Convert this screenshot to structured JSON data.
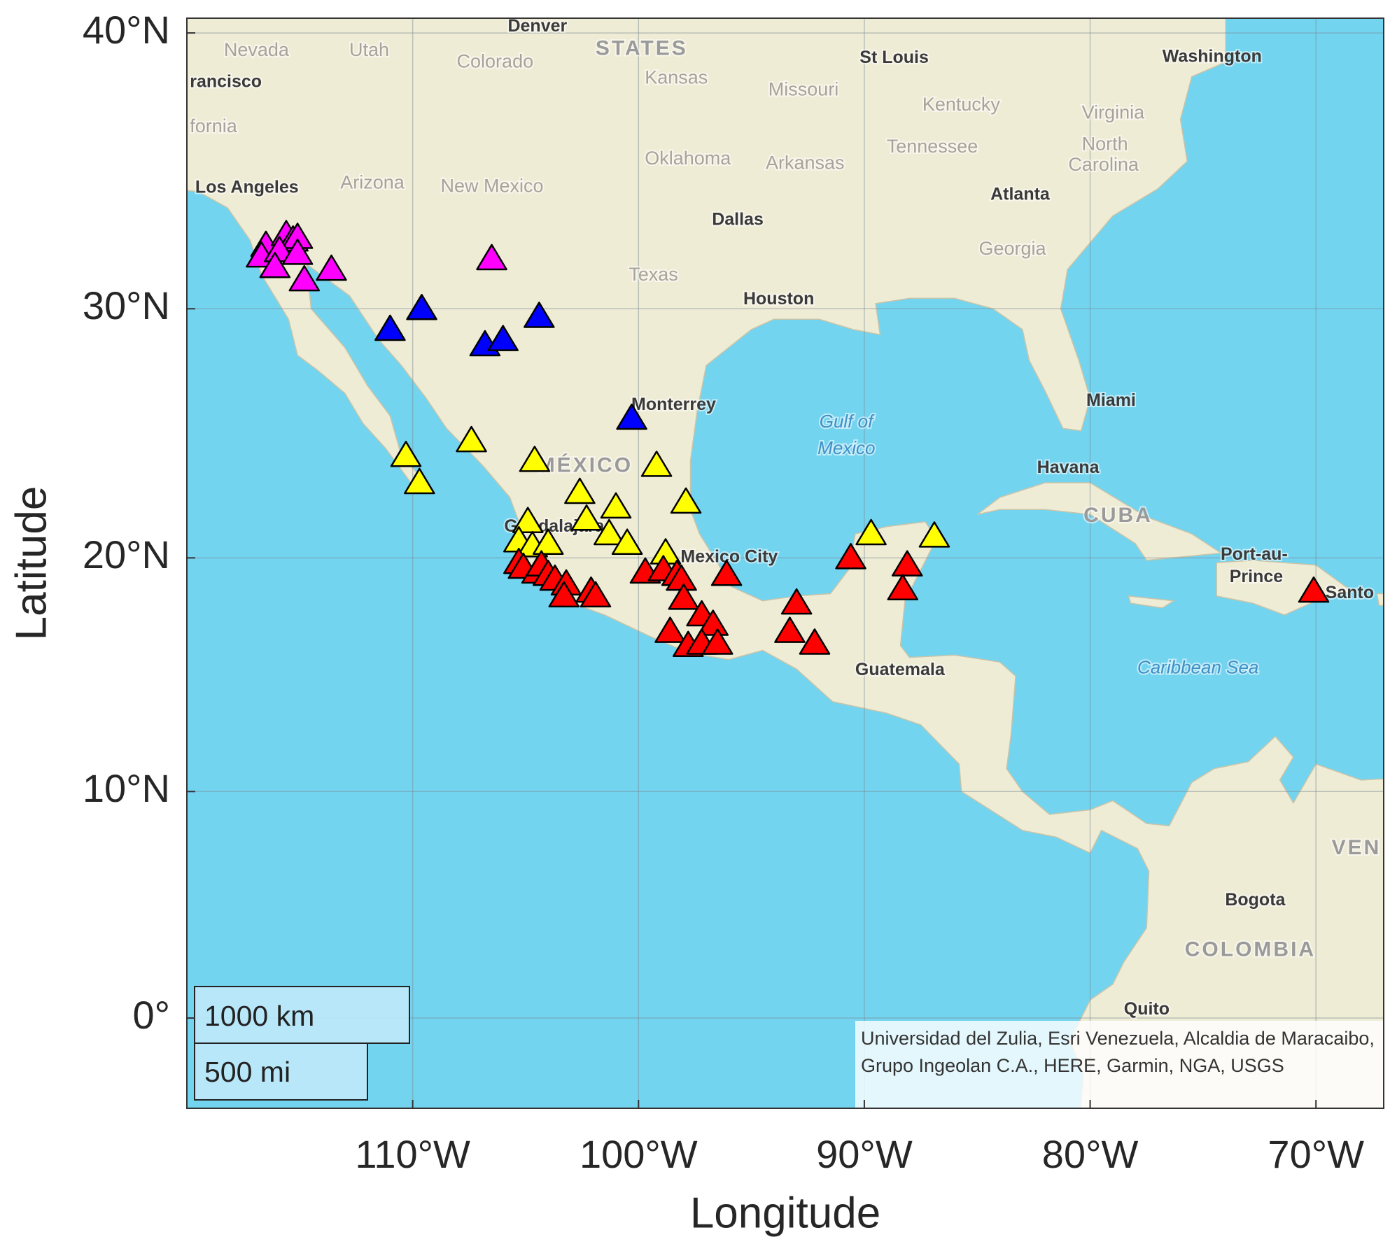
{
  "chart_data": {
    "type": "scatter",
    "projection": "mercator",
    "x_label": "Longitude",
    "y_label": "Latitude",
    "xlim": [
      -120,
      -67
    ],
    "ylim": [
      -4,
      40.5
    ],
    "xticks": [
      {
        "value": -110,
        "label": "110°W"
      },
      {
        "value": -100,
        "label": "100°W"
      },
      {
        "value": -90,
        "label": "90°W"
      },
      {
        "value": -80,
        "label": "80°W"
      },
      {
        "value": -70,
        "label": "70°W"
      }
    ],
    "yticks": [
      {
        "value": 0,
        "label": "0°"
      },
      {
        "value": 10,
        "label": "10°N"
      },
      {
        "value": 20,
        "label": "20°N"
      },
      {
        "value": 30,
        "label": "30°N"
      },
      {
        "value": 40,
        "label": "40°N"
      }
    ],
    "grid": true,
    "marker": "triangle",
    "series": [
      {
        "color": "#ff00ff",
        "x": [
          -116.5,
          -116.7,
          -115.6,
          -115.3,
          -115.1,
          -115.9,
          -115.1,
          -116.1,
          -114.8,
          -113.6,
          -106.5
        ],
        "y": [
          32.4,
          32.0,
          32.8,
          32.6,
          32.7,
          32.2,
          32.1,
          31.6,
          31.1,
          31.5,
          31.9
        ]
      },
      {
        "color": "#0000ff",
        "x": [
          -111.0,
          -109.6,
          -106.8,
          -106.0,
          -104.4,
          -100.3
        ],
        "y": [
          29.2,
          30.0,
          28.6,
          28.8,
          29.7,
          25.7
        ]
      },
      {
        "color": "#ffff00",
        "x": [
          -110.3,
          -109.7,
          -107.4,
          -104.6,
          -99.2,
          -102.6,
          -101.0,
          -97.9,
          -102.3,
          -101.3,
          -100.5,
          -104.9,
          -105.3,
          -104.7,
          -104.0,
          -98.8,
          -89.7,
          -86.9
        ],
        "y": [
          24.2,
          23.1,
          24.8,
          24.0,
          23.8,
          22.7,
          22.1,
          22.3,
          21.6,
          21.0,
          20.6,
          21.5,
          20.7,
          20.5,
          20.6,
          20.2,
          21.0,
          20.9
        ]
      },
      {
        "color": "#ff0000",
        "x": [
          -105.3,
          -105.1,
          -104.5,
          -104.3,
          -104.0,
          -103.7,
          -103.2,
          -103.3,
          -102.1,
          -101.9,
          -99.7,
          -98.9,
          -98.3,
          -98.1,
          -96.1,
          -98.0,
          -98.6,
          -97.2,
          -96.7,
          -97.8,
          -97.2,
          -96.5,
          -93.0,
          -93.3,
          -92.2,
          -90.6,
          -88.1,
          -88.3,
          -70.1
        ],
        "y": [
          19.8,
          19.6,
          19.4,
          19.7,
          19.3,
          19.1,
          18.9,
          18.4,
          18.6,
          18.4,
          19.4,
          19.5,
          19.3,
          19.1,
          19.3,
          18.3,
          16.9,
          17.6,
          17.2,
          16.3,
          16.4,
          16.4,
          18.1,
          16.9,
          16.4,
          20.0,
          19.7,
          18.7,
          18.6
        ]
      }
    ],
    "map_labels": [
      "Denver",
      "Colorado",
      "Nevada",
      "Utah",
      "rancisco",
      "fornia",
      "Los Angeles",
      "Arizona",
      "New Mexico",
      "Kansas",
      "Missouri",
      "St Louis",
      "Kentucky",
      "Washington",
      "Virginia",
      "Tennessee",
      "North",
      "Carolina",
      "Oklahoma",
      "Arkansas",
      "Atlanta",
      "Georgia",
      "Dallas",
      "Texas",
      "Houston",
      "STATES",
      "Monterrey",
      "MÉXICO",
      "Guadalajara",
      "Mexico City",
      "Gulf of",
      "Mexico",
      "Miami",
      "Havana",
      "CUBA",
      "Port-au-",
      "Prince",
      "Santo",
      "Caribbean Sea",
      "Guatemala",
      "VEN",
      "Bogota",
      "COLOMBIA",
      "Quito"
    ],
    "scale_bar": [
      "1000 km",
      "500 mi"
    ],
    "attribution": "Universidad del Zulia, Esri Venezuela, Alcaldia de Maracaibo, Grupo Ingeolan C.A., HERE, Garmin, NGA, USGS"
  }
}
